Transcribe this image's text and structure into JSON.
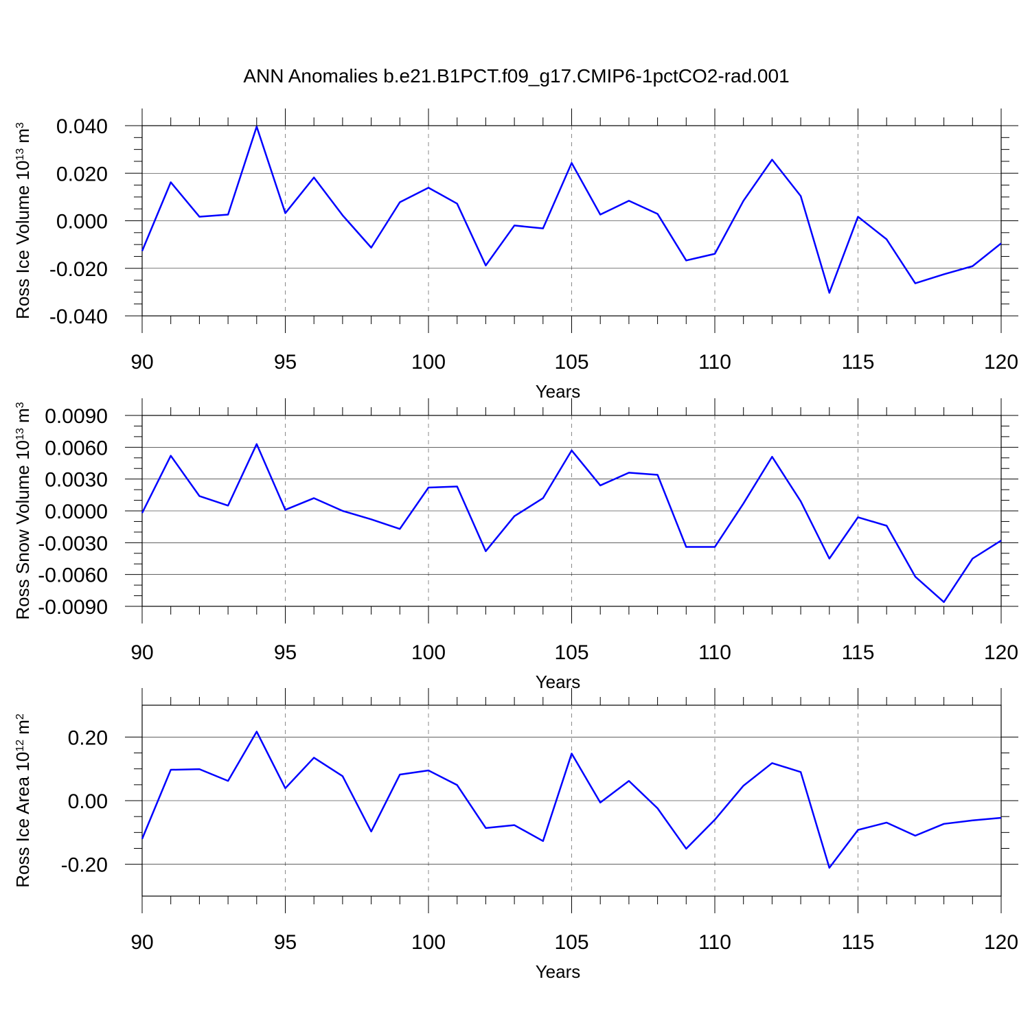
{
  "title": "ANN Anomalies b.e21.B1PCT.f09_g17.CMIP6-1pctCO2-rad.001",
  "chart_data": [
    {
      "type": "line",
      "ylabel": [
        "Ross Ice Volume 10",
        "13",
        " m",
        "3"
      ],
      "xlabel": "Years",
      "color": "#0000ff",
      "x": [
        90,
        91,
        92,
        93,
        94,
        95,
        96,
        97,
        98,
        99,
        100,
        101,
        102,
        103,
        104,
        105,
        106,
        107,
        108,
        109,
        110,
        111,
        112,
        113,
        114,
        115,
        116,
        117,
        118,
        119,
        120
      ],
      "values": [
        -0.0127,
        0.0162,
        0.0017,
        0.0026,
        0.0396,
        0.0032,
        0.0182,
        0.0023,
        -0.0113,
        0.0078,
        0.0139,
        0.0072,
        -0.0188,
        -0.002,
        -0.0032,
        0.0243,
        0.0026,
        0.0084,
        0.0029,
        -0.0167,
        -0.0139,
        0.0084,
        0.0257,
        0.0104,
        -0.0303,
        0.0017,
        -0.0078,
        -0.0263,
        -0.0225,
        -0.0191,
        -0.0095
      ],
      "xlim": [
        90,
        120
      ],
      "xticks": [
        90,
        95,
        100,
        105,
        110,
        115,
        120
      ],
      "ylim": [
        -0.04,
        0.04
      ],
      "yticks": [
        {
          "value": -0.04,
          "label": "-0.040"
        },
        {
          "value": -0.02,
          "label": "-0.020"
        },
        {
          "value": 0,
          "label": "0.000"
        },
        {
          "value": 0.02,
          "label": "0.020"
        },
        {
          "value": 0.04,
          "label": "0.040"
        }
      ],
      "yminor_per_interval": 3,
      "xgrid": true
    },
    {
      "type": "line",
      "ylabel": [
        "Ross Snow Volume 10",
        "13",
        " m",
        "3"
      ],
      "xlabel": "Years",
      "color": "#0000ff",
      "x": [
        90,
        91,
        92,
        93,
        94,
        95,
        96,
        97,
        98,
        99,
        100,
        101,
        102,
        103,
        104,
        105,
        106,
        107,
        108,
        109,
        110,
        111,
        112,
        113,
        114,
        115,
        116,
        117,
        118,
        119,
        120
      ],
      "values": [
        -0.0002,
        0.0052,
        0.0014,
        0.0005,
        0.0063,
        0.0001,
        0.0012,
        0.0,
        -0.0008,
        -0.0017,
        0.0022,
        0.0023,
        -0.0038,
        -0.0005,
        0.0012,
        0.0057,
        0.0024,
        0.0036,
        0.0034,
        -0.0034,
        -0.0034,
        0.0007,
        0.0051,
        0.0009,
        -0.0045,
        -0.0006,
        -0.0014,
        -0.0062,
        -0.0086,
        -0.0045,
        -0.0028
      ],
      "xlim": [
        90,
        120
      ],
      "xticks": [
        90,
        95,
        100,
        105,
        110,
        115,
        120
      ],
      "ylim": [
        -0.009,
        0.009
      ],
      "yticks": [
        {
          "value": -0.009,
          "label": "-0.0090"
        },
        {
          "value": -0.006,
          "label": "-0.0060"
        },
        {
          "value": -0.003,
          "label": "-0.0030"
        },
        {
          "value": 0,
          "label": "0.0000"
        },
        {
          "value": 0.003,
          "label": "0.0030"
        },
        {
          "value": 0.006,
          "label": "0.0060"
        },
        {
          "value": 0.009,
          "label": "0.0090"
        }
      ],
      "yminor_per_interval": 2,
      "xgrid": true
    },
    {
      "type": "line",
      "ylabel": [
        "Ross Ice Area 10",
        "12",
        " m",
        "2"
      ],
      "xlabel": "Years",
      "color": "#0000ff",
      "x": [
        90,
        91,
        92,
        93,
        94,
        95,
        96,
        97,
        98,
        99,
        100,
        101,
        102,
        103,
        104,
        105,
        106,
        107,
        108,
        109,
        110,
        111,
        112,
        113,
        114,
        115,
        116,
        117,
        118,
        119,
        120
      ],
      "values": [
        -0.12,
        0.097,
        0.099,
        0.062,
        0.217,
        0.039,
        0.135,
        0.077,
        -0.097,
        0.082,
        0.095,
        0.049,
        -0.086,
        -0.077,
        -0.127,
        0.148,
        -0.006,
        0.062,
        -0.024,
        -0.151,
        -0.06,
        0.047,
        0.118,
        0.09,
        -0.211,
        -0.092,
        -0.069,
        -0.11,
        -0.073,
        -0.062,
        -0.054
      ],
      "xlim": [
        90,
        120
      ],
      "xticks": [
        90,
        95,
        100,
        105,
        110,
        115,
        120
      ],
      "ylim": [
        -0.3,
        0.3
      ],
      "yticks": [
        {
          "value": -0.2,
          "label": "-0.20"
        },
        {
          "value": 0,
          "label": "0.00"
        },
        {
          "value": 0.2,
          "label": "0.20"
        }
      ],
      "yminor_per_interval": 3,
      "xgrid": true
    }
  ]
}
